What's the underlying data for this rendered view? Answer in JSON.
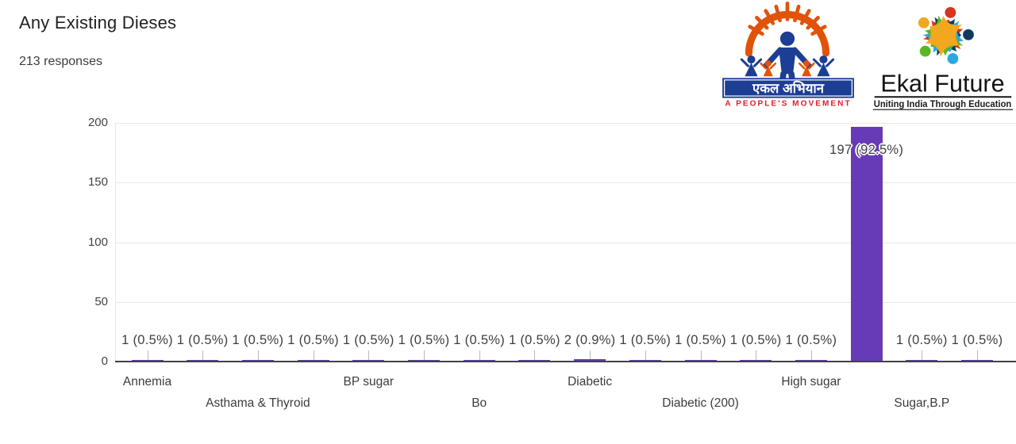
{
  "page": {
    "title": "Any Existing Dieses",
    "subtitle": "213 responses"
  },
  "chart_data": {
    "type": "bar",
    "title": "Any Existing Dieses",
    "subtitle": "213 responses",
    "categories": [
      "Annemia",
      "",
      "Asthama & Thyroid",
      "",
      "BP sugar",
      "",
      "Bo",
      "",
      "Diabetic",
      "",
      "Diabetic (200)",
      "",
      "High sugar",
      "",
      "Sugar,B.P",
      ""
    ],
    "values": [
      1,
      1,
      1,
      1,
      1,
      1,
      1,
      1,
      2,
      1,
      1,
      1,
      1,
      197,
      1,
      1
    ],
    "value_labels": [
      "1 (0.5%)",
      "1 (0.5%)",
      "1 (0.5%)",
      "1 (0.5%)",
      "1 (0.5%)",
      "1 (0.5%)",
      "1 (0.5%)",
      "1 (0.5%)",
      "2 (0.9%)",
      "1 (0.5%)",
      "1 (0.5%)",
      "1 (0.5%)",
      "1 (0.5%)",
      "197 (92.5%)",
      "1 (0.5%)",
      "1 (0.5%)"
    ],
    "xlabel": "",
    "ylabel": "",
    "ylim": [
      0,
      200
    ],
    "yticks": [
      0,
      50,
      100,
      150,
      200
    ],
    "bar_color": "#673ab7",
    "grid": true,
    "legend": "none"
  },
  "logos": {
    "ekal_abhiyan": {
      "banner": "एकल अभियान",
      "tagline": "A PEOPLE'S MOVEMENT",
      "sun_color": "#e2530a",
      "figure_color": "#1c3e94",
      "tagline_color": "#e31e24"
    },
    "ekal_future": {
      "name": "Ekal Future",
      "tagline": "Uniting India Through Education"
    }
  }
}
